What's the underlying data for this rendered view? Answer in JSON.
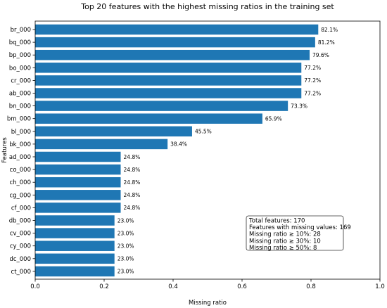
{
  "chart_data": {
    "type": "bar",
    "orientation": "horizontal",
    "title": "Top 20 features with the highest missing ratios in the training set",
    "xlabel": "Missing ratio",
    "ylabel": "Features",
    "xlim": [
      0,
      1.0
    ],
    "xticks": [
      "0.0",
      "0.2",
      "0.4",
      "0.6",
      "0.8",
      "1.0"
    ],
    "xtick_values": [
      0,
      0.2,
      0.4,
      0.6,
      0.8,
      1.0
    ],
    "bar_color": "#1f77b4",
    "categories": [
      "br_000",
      "bq_000",
      "bp_000",
      "bo_000",
      "cr_000",
      "ab_000",
      "bn_000",
      "bm_000",
      "bl_000",
      "bk_000",
      "ad_000",
      "co_000",
      "ch_000",
      "cg_000",
      "cf_000",
      "db_000",
      "cv_000",
      "cy_000",
      "dc_000",
      "ct_000"
    ],
    "values": [
      0.821,
      0.812,
      0.796,
      0.772,
      0.772,
      0.772,
      0.733,
      0.659,
      0.455,
      0.384,
      0.248,
      0.248,
      0.248,
      0.248,
      0.248,
      0.23,
      0.23,
      0.23,
      0.23,
      0.23
    ],
    "labels": [
      "82.1%",
      "81.2%",
      "79.6%",
      "77.2%",
      "77.2%",
      "77.2%",
      "73.3%",
      "65.9%",
      "45.5%",
      "38.4%",
      "24.8%",
      "24.8%",
      "24.8%",
      "24.8%",
      "24.8%",
      "23.0%",
      "23.0%",
      "23.0%",
      "23.0%",
      "23.0%"
    ],
    "stats_box": {
      "lines": [
        "Total features: 170",
        "Features with missing values: 169",
        "Missing ratio ≥ 10%: 28",
        "Missing ratio ≥ 30%: 10",
        "Missing ratio ≥ 50%: 8"
      ]
    }
  }
}
